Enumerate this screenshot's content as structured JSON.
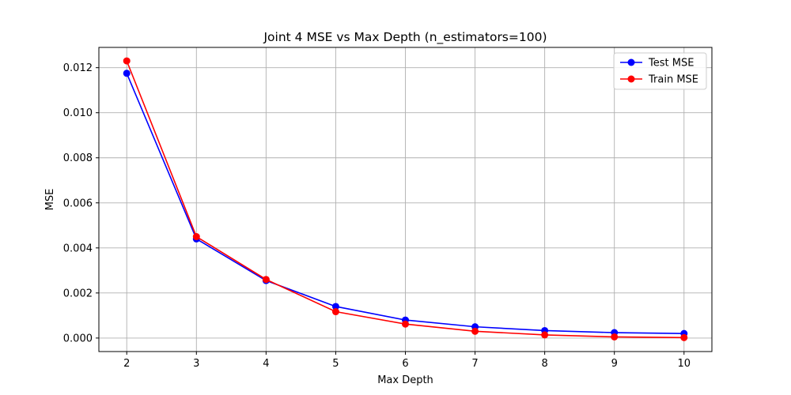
{
  "chart_data": {
    "type": "line",
    "title": "Joint 4 MSE vs Max Depth (n_estimators=100)",
    "xlabel": "Max Depth",
    "ylabel": "MSE",
    "x": [
      2,
      3,
      4,
      5,
      6,
      7,
      8,
      9,
      10
    ],
    "xlim": [
      1.6,
      10.4
    ],
    "ylim": [
      -0.0006,
      0.0129
    ],
    "xticks": [
      "2",
      "3",
      "4",
      "5",
      "6",
      "7",
      "8",
      "9",
      "10"
    ],
    "yticks": [
      0.0,
      0.002,
      0.004,
      0.006,
      0.008,
      0.01,
      0.012
    ],
    "ytick_labels": [
      "0.000",
      "0.002",
      "0.004",
      "0.006",
      "0.008",
      "0.010",
      "0.012"
    ],
    "grid": true,
    "legend_position": "top-right",
    "series": [
      {
        "name": "Test MSE",
        "color": "#0000ff",
        "values": [
          0.01175,
          0.0044,
          0.00255,
          0.0014,
          0.0008,
          0.0005,
          0.00033,
          0.00024,
          0.0002
        ]
      },
      {
        "name": "Train MSE",
        "color": "#ff0000",
        "values": [
          0.0123,
          0.0045,
          0.0026,
          0.00117,
          0.00062,
          0.0003,
          0.00014,
          5e-05,
          2e-05
        ]
      }
    ]
  }
}
